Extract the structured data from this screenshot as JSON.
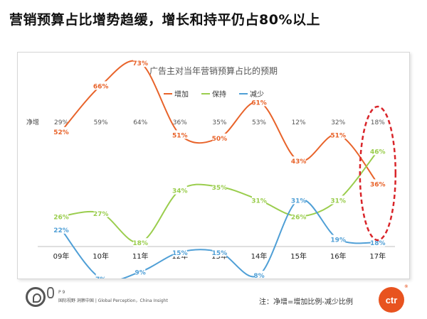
{
  "headline": "营销预算占比增势趋缓，增长和持平仍占80%以上",
  "chart_data": {
    "type": "line",
    "title": "广告主对当年营销预算占比的预期",
    "categories": [
      "09年",
      "10年",
      "11年",
      "12年",
      "13年",
      "14年",
      "15年",
      "16年",
      "17年"
    ],
    "net_label": "净增",
    "net_increase": [
      "29%",
      "59%",
      "64%",
      "36%",
      "35%",
      "53%",
      "12%",
      "32%",
      "18%"
    ],
    "series": [
      {
        "name": "增加",
        "color": "#e8632a",
        "values": [
          52,
          66,
          73,
          51,
          50,
          61,
          43,
          51,
          36
        ]
      },
      {
        "name": "保持",
        "color": "#9acd4d",
        "values": [
          26,
          27,
          18,
          34,
          35,
          31,
          26,
          31,
          46
        ]
      },
      {
        "name": "减少",
        "color": "#4f9fd6",
        "values": [
          22,
          7,
          9,
          15,
          15,
          8,
          31,
          19,
          18
        ]
      }
    ],
    "highlight_category": "17年",
    "legend_position": "top-center"
  },
  "footer": {
    "page": "P 9",
    "tagline": "国际视野  洞察中国 | Global Perception，China Insight",
    "note": "注：净增=增加比例-减少比例",
    "brand": "ctr",
    "reg": "®"
  }
}
